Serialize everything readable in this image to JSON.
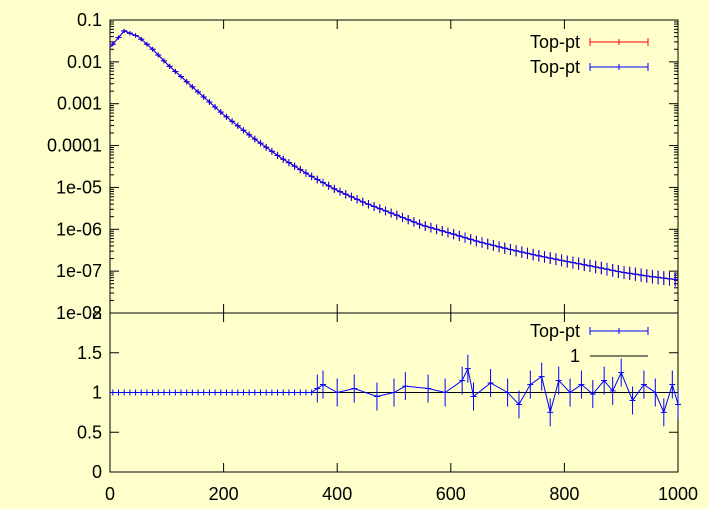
{
  "colors": {
    "background": "#ffffcc",
    "series_red": "#ff0000",
    "series_blue": "#0000ff",
    "reference_line": "#000000",
    "frame": "#000000"
  },
  "chart_data": [
    {
      "panel": "top",
      "type": "line",
      "yscale": "log",
      "xlim": [
        0,
        1000
      ],
      "ylim": [
        1e-08,
        0.1
      ],
      "yticks": [
        {
          "value": 0.1,
          "label": "0.1"
        },
        {
          "value": 0.01,
          "label": "0.01"
        },
        {
          "value": 0.001,
          "label": "0.001"
        },
        {
          "value": 0.0001,
          "label": "0.0001"
        },
        {
          "value": 1e-05,
          "label": "1e-05"
        },
        {
          "value": 1e-06,
          "label": "1e-06"
        },
        {
          "value": 1e-07,
          "label": "1e-07"
        },
        {
          "value": 1e-08,
          "label": "1e-08"
        }
      ],
      "legend_position": "top-right",
      "grid": false,
      "series": [
        {
          "name": "Top-pt",
          "color": "#ff0000",
          "error_bars": true,
          "x": [
            0,
            25,
            50,
            75,
            100,
            150,
            200,
            250,
            300,
            350,
            400,
            450,
            500,
            550,
            600,
            650,
            700,
            750,
            800,
            850,
            900,
            950,
            1000
          ],
          "y": [
            0.022,
            0.055,
            0.04,
            0.02,
            0.009,
            0.0022,
            0.00055,
            0.00016,
            5.2e-05,
            2e-05,
            8.5e-06,
            4.2e-06,
            2.3e-06,
            1.25e-06,
            8e-07,
            5e-07,
            3.4e-07,
            2.4e-07,
            1.75e-07,
            1.3e-07,
            9.5e-08,
            7.5e-08,
            6.2e-08
          ]
        },
        {
          "name": "Top-pt",
          "color": "#0000ff",
          "error_bars": true,
          "x": [
            0,
            25,
            50,
            75,
            100,
            150,
            200,
            250,
            300,
            350,
            400,
            450,
            500,
            550,
            600,
            650,
            700,
            750,
            800,
            850,
            900,
            950,
            1000
          ],
          "y": [
            0.022,
            0.055,
            0.04,
            0.02,
            0.009,
            0.0022,
            0.00055,
            0.00016,
            5.2e-05,
            2e-05,
            8.5e-06,
            4.2e-06,
            2.3e-06,
            1.25e-06,
            8e-07,
            5e-07,
            3.4e-07,
            2.4e-07,
            1.75e-07,
            1.3e-07,
            9.5e-08,
            7.5e-08,
            6.2e-08
          ]
        }
      ]
    },
    {
      "panel": "bottom",
      "type": "line",
      "yscale": "linear",
      "xlim": [
        0,
        1000
      ],
      "ylim": [
        0,
        2
      ],
      "xticks": [
        {
          "value": 0,
          "label": "0"
        },
        {
          "value": 200,
          "label": "200"
        },
        {
          "value": 400,
          "label": "400"
        },
        {
          "value": 600,
          "label": "600"
        },
        {
          "value": 800,
          "label": "800"
        },
        {
          "value": 1000,
          "label": "1000"
        }
      ],
      "yticks": [
        {
          "value": 0,
          "label": "0"
        },
        {
          "value": 0.5,
          "label": "0.5"
        },
        {
          "value": 1,
          "label": "1"
        },
        {
          "value": 1.5,
          "label": "1.5"
        },
        {
          "value": 2,
          "label": "2"
        }
      ],
      "legend_position": "top-right",
      "grid": false,
      "series": [
        {
          "name": "Top-pt",
          "color": "#0000ff",
          "error_bars": true,
          "x": [
            365,
            375,
            400,
            430,
            470,
            500,
            520,
            560,
            590,
            620,
            630,
            640,
            670,
            700,
            720,
            740,
            760,
            775,
            790,
            810,
            830,
            850,
            870,
            885,
            900,
            920,
            940,
            960,
            975,
            990,
            1000
          ],
          "y": [
            1.05,
            1.1,
            1.0,
            1.05,
            0.95,
            1.0,
            1.08,
            1.05,
            1.0,
            1.15,
            1.3,
            0.95,
            1.12,
            1.0,
            0.85,
            1.1,
            1.2,
            0.75,
            1.15,
            1.0,
            1.1,
            0.98,
            1.15,
            1.02,
            1.25,
            0.9,
            1.1,
            1.0,
            0.75,
            1.1,
            0.85
          ]
        },
        {
          "name": "1",
          "color": "#000000",
          "error_bars": false,
          "x": [
            0,
            1000
          ],
          "y": [
            1,
            1
          ]
        }
      ]
    }
  ]
}
